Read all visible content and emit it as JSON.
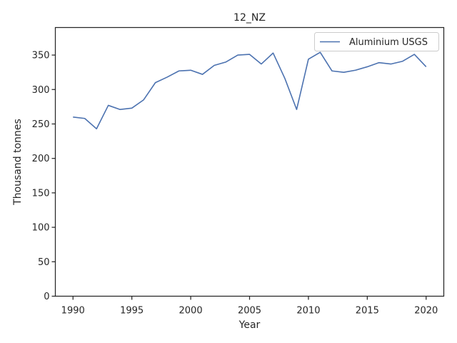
{
  "chart_data": {
    "type": "line",
    "title": "12_NZ",
    "xlabel": "Year",
    "ylabel": "Thousand tonnes",
    "xlim": [
      1988.5,
      2021.5
    ],
    "ylim": [
      0,
      390
    ],
    "xticks": [
      1990,
      1995,
      2000,
      2005,
      2010,
      2015,
      2020
    ],
    "yticks": [
      0,
      50,
      100,
      150,
      200,
      250,
      300,
      350
    ],
    "grid": false,
    "legend_position": "top-right",
    "series": [
      {
        "name": "Aluminium USGS",
        "color": "#4c72b0",
        "x": [
          1990,
          1991,
          1992,
          1993,
          1994,
          1995,
          1996,
          1997,
          1998,
          1999,
          2000,
          2001,
          2002,
          2003,
          2004,
          2005,
          2006,
          2007,
          2008,
          2009,
          2010,
          2011,
          2012,
          2013,
          2014,
          2015,
          2016,
          2017,
          2018,
          2019,
          2020
        ],
        "values": [
          260,
          258,
          243,
          277,
          271,
          273,
          285,
          310,
          318,
          327,
          328,
          322,
          335,
          340,
          350,
          351,
          337,
          353,
          316,
          271,
          344,
          354,
          327,
          325,
          328,
          333,
          339,
          337,
          341,
          351,
          333
        ]
      }
    ]
  }
}
